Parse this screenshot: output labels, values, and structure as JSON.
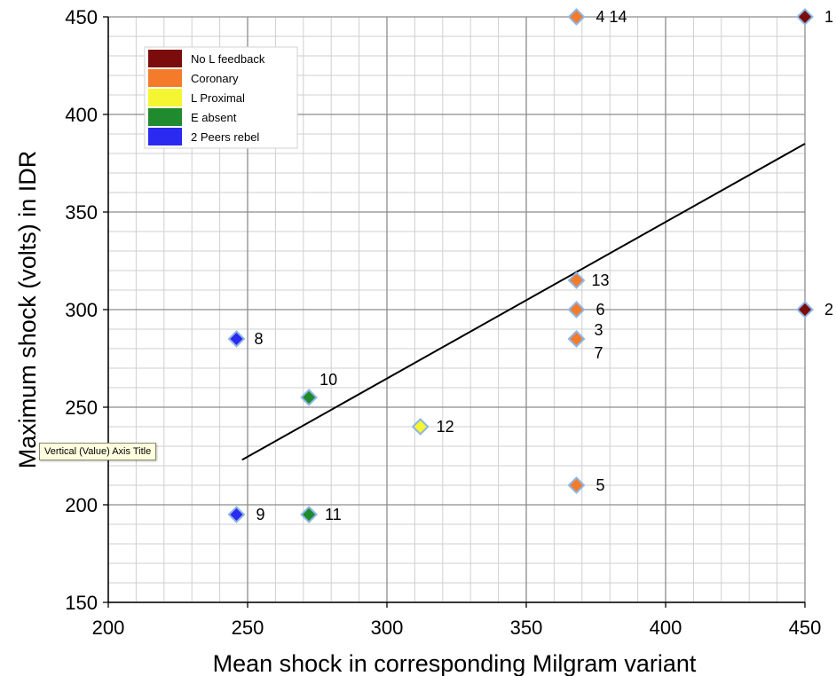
{
  "chart_data": {
    "type": "scatter",
    "xlabel": "Mean shock in corresponding Milgram variant",
    "ylabel": "Maximum shock (volts) in IDR",
    "xlim": [
      200,
      450
    ],
    "ylim": [
      150,
      450
    ],
    "x_ticks": [
      200,
      250,
      300,
      350,
      400,
      450
    ],
    "y_ticks": [
      150,
      200,
      250,
      300,
      350,
      400,
      450
    ],
    "grid": true,
    "legend_position": "top-left",
    "series": [
      {
        "name": "No L feedback",
        "color": "#7a0c0c",
        "points": [
          {
            "x": 450,
            "y": 450,
            "label": "1"
          },
          {
            "x": 450,
            "y": 300,
            "label": "2"
          }
        ]
      },
      {
        "name": "Coronary",
        "color": "#f47b29",
        "points": [
          {
            "x": 368,
            "y": 285,
            "label": "3"
          },
          {
            "x": 368,
            "y": 450,
            "label": "4 14"
          },
          {
            "x": 368,
            "y": 210,
            "label": "5"
          },
          {
            "x": 368,
            "y": 300,
            "label": "6"
          },
          {
            "x": 368,
            "y": 285,
            "label": "7"
          },
          {
            "x": 368,
            "y": 315,
            "label": "13"
          }
        ]
      },
      {
        "name": "L Proximal",
        "color": "#f5f532",
        "points": [
          {
            "x": 312,
            "y": 240,
            "label": "12"
          }
        ]
      },
      {
        "name": "E absent",
        "color": "#1f8a2e",
        "points": [
          {
            "x": 272,
            "y": 255,
            "label": "10"
          },
          {
            "x": 272,
            "y": 195,
            "label": "11"
          }
        ]
      },
      {
        "name": "2 Peers rebel",
        "color": "#2a2af0",
        "points": [
          {
            "x": 246,
            "y": 285,
            "label": "8"
          },
          {
            "x": 246,
            "y": 195,
            "label": "9"
          }
        ]
      }
    ],
    "trendline": {
      "x": [
        248,
        450
      ],
      "y": [
        223,
        385
      ],
      "color": "#000000"
    }
  },
  "tooltip": {
    "text": "Vertical (Value) Axis Title"
  }
}
